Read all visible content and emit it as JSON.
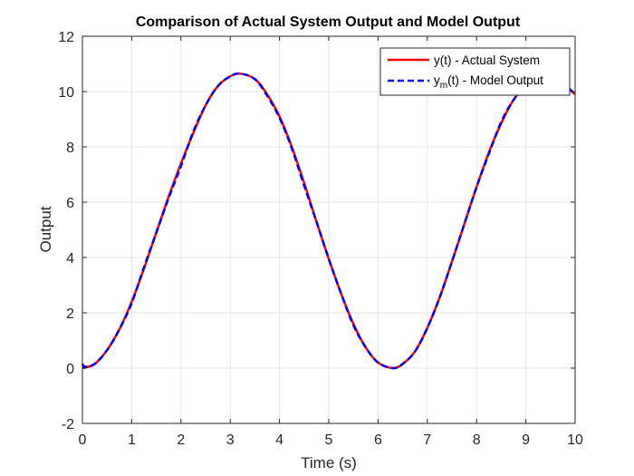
{
  "chart_data": {
    "type": "line",
    "title": "Comparison of Actual System Output and Model Output",
    "xlabel": "Time (s)",
    "ylabel": "Output",
    "xlim": [
      0,
      10
    ],
    "ylim": [
      -2,
      12
    ],
    "xticks": [
      0,
      1,
      2,
      3,
      4,
      5,
      6,
      7,
      8,
      9,
      10
    ],
    "yticks": [
      -2,
      0,
      2,
      4,
      6,
      8,
      10,
      12
    ],
    "grid": true,
    "legend_position": "top-right",
    "colors": {
      "actual": "#ff0000",
      "model": "#0000ff",
      "grid": "#e6e6e6",
      "axis": "#262626"
    },
    "series": [
      {
        "name": "y(t) - Actual System",
        "style": "solid",
        "color": "#ff0000",
        "x": [
          0,
          0.25,
          0.5,
          0.75,
          1.0,
          1.25,
          1.5,
          1.75,
          2.0,
          2.25,
          2.5,
          2.75,
          3.0,
          3.2,
          3.5,
          3.75,
          4.0,
          4.25,
          4.5,
          4.75,
          5.0,
          5.25,
          5.5,
          5.75,
          6.0,
          6.3,
          6.5,
          6.75,
          7.0,
          7.25,
          7.5,
          7.75,
          8.0,
          8.25,
          8.5,
          8.75,
          9.0,
          9.25,
          9.5,
          9.75,
          10.0
        ],
        "y": [
          0,
          0.15,
          0.65,
          1.4,
          2.4,
          3.6,
          4.9,
          6.2,
          7.4,
          8.5,
          9.5,
          10.2,
          10.55,
          10.65,
          10.45,
          9.9,
          9.1,
          8.0,
          6.7,
          5.3,
          3.95,
          2.7,
          1.6,
          0.75,
          0.2,
          0.0,
          0.15,
          0.6,
          1.45,
          2.55,
          3.85,
          5.2,
          6.55,
          7.8,
          8.85,
          9.7,
          10.2,
          10.5,
          10.55,
          10.3,
          9.9
        ]
      },
      {
        "name": "y_m(t) - Model Output",
        "style": "dashed",
        "color": "#0000ff",
        "x": [
          0,
          0.05,
          0.25,
          0.5,
          0.75,
          1.0,
          1.25,
          1.5,
          1.75,
          2.0,
          2.25,
          2.5,
          2.75,
          3.0,
          3.2,
          3.5,
          3.75,
          4.0,
          4.25,
          4.5,
          4.75,
          5.0,
          5.25,
          5.5,
          5.75,
          6.0,
          6.3,
          6.5,
          6.75,
          7.0,
          7.25,
          7.5,
          7.75,
          8.0,
          8.25,
          8.5,
          8.75,
          9.0,
          9.25,
          9.5,
          9.75,
          10.0
        ],
        "y": [
          0.15,
          0.05,
          0.15,
          0.65,
          1.4,
          2.35,
          3.65,
          4.9,
          6.15,
          7.3,
          8.55,
          9.5,
          10.2,
          10.55,
          10.65,
          10.45,
          9.85,
          9.05,
          7.95,
          6.6,
          5.3,
          3.95,
          2.7,
          1.55,
          0.75,
          0.2,
          0.0,
          0.15,
          0.6,
          1.45,
          2.55,
          3.85,
          5.2,
          6.55,
          7.75,
          8.9,
          9.7,
          10.2,
          10.5,
          10.55,
          10.3,
          9.9
        ]
      }
    ],
    "legend": [
      {
        "label_main": "y",
        "label_sub": "",
        "label_rest": "(t) - Actual System"
      },
      {
        "label_main": "y",
        "label_sub": "m",
        "label_rest": "(t) - Model Output"
      }
    ]
  }
}
